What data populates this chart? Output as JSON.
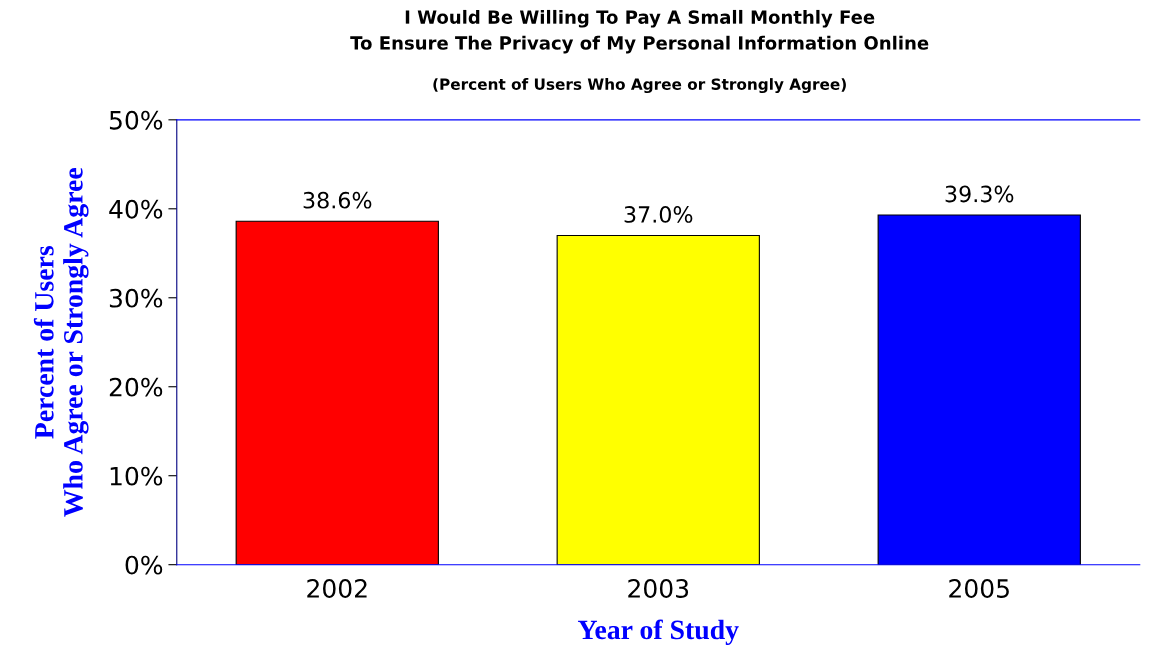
{
  "chart_data": {
    "type": "bar",
    "title": "I Would Be Willing To Pay A Small Monthly Fee\nTo Ensure The Privacy of My Personal Information Online",
    "subtitle": "(Percent of Users Who Agree or Strongly Agree)",
    "xlabel": "Year of Study",
    "ylabel": "Percent of Users\nWho Agree or Strongly Agree",
    "categories": [
      "2002",
      "2003",
      "2005"
    ],
    "values": [
      38.6,
      37.0,
      39.3
    ],
    "colors": [
      "#ff0000",
      "#ffff00",
      "#0000ff"
    ],
    "value_labels": [
      "38.6%",
      "37.0%",
      "39.3%"
    ],
    "ylim": [
      0,
      50
    ],
    "yticks": [
      {
        "value": 0,
        "label": "0%"
      },
      {
        "value": 10,
        "label": "10%"
      },
      {
        "value": 20,
        "label": "20%"
      },
      {
        "value": 30,
        "label": "30%"
      },
      {
        "value": 40,
        "label": "40%"
      },
      {
        "value": 50,
        "label": "50%"
      }
    ],
    "grid": false,
    "legend": false
  }
}
